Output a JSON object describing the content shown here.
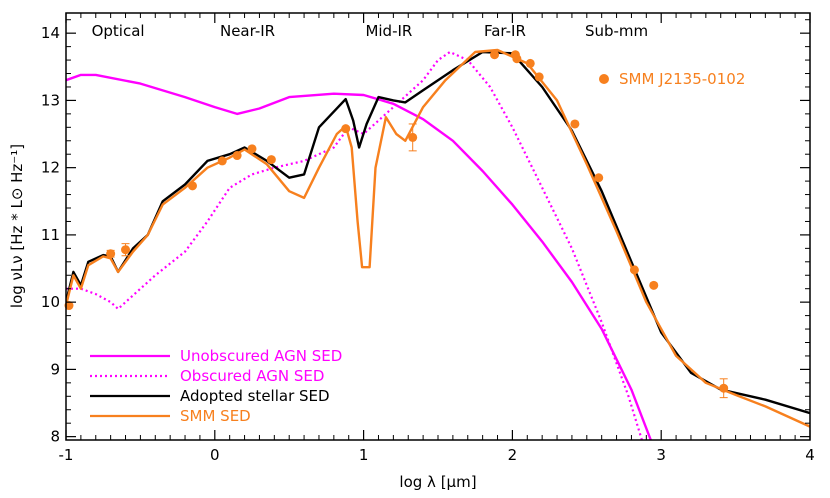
{
  "chart_data": {
    "type": "line",
    "xlabel": "log λ [μm]",
    "ylabel": "log νLν [Hz * L⊙ Hz⁻¹]",
    "xlim": [
      -1,
      4
    ],
    "ylim": [
      7.95,
      14.3
    ],
    "xticks": [
      -1,
      0,
      1,
      2,
      3,
      4
    ],
    "yticks": [
      8,
      9,
      10,
      11,
      12,
      13,
      14
    ],
    "regions": [
      {
        "label": "Optical",
        "x": -0.65
      },
      {
        "label": "Near-IR",
        "x": 0.22
      },
      {
        "label": "Mid-IR",
        "x": 1.17
      },
      {
        "label": "Far-IR",
        "x": 1.95
      },
      {
        "label": "Sub-mm",
        "x": 2.7
      }
    ],
    "series": [
      {
        "name": "Unobscured AGN SED",
        "color": "#ff00ff",
        "dash": "solid",
        "points": [
          [
            -1,
            13.3
          ],
          [
            -0.9,
            13.38
          ],
          [
            -0.8,
            13.38
          ],
          [
            -0.5,
            13.25
          ],
          [
            -0.2,
            13.05
          ],
          [
            0,
            12.9
          ],
          [
            0.15,
            12.8
          ],
          [
            0.3,
            12.88
          ],
          [
            0.5,
            13.05
          ],
          [
            0.8,
            13.1
          ],
          [
            1.0,
            13.08
          ],
          [
            1.2,
            12.95
          ],
          [
            1.4,
            12.72
          ],
          [
            1.6,
            12.4
          ],
          [
            1.8,
            11.95
          ],
          [
            2.0,
            11.45
          ],
          [
            2.2,
            10.9
          ],
          [
            2.4,
            10.3
          ],
          [
            2.6,
            9.6
          ],
          [
            2.8,
            8.7
          ],
          [
            2.93,
            7.95
          ]
        ]
      },
      {
        "name": "Obscured AGN SED",
        "color": "#ff00ff",
        "dash": "dotted",
        "points": [
          [
            -1,
            10.2
          ],
          [
            -0.9,
            10.2
          ],
          [
            -0.8,
            10.12
          ],
          [
            -0.7,
            10.0
          ],
          [
            -0.65,
            9.9
          ],
          [
            -0.55,
            10.1
          ],
          [
            -0.4,
            10.4
          ],
          [
            -0.2,
            10.75
          ],
          [
            -0.05,
            11.2
          ],
          [
            0.1,
            11.7
          ],
          [
            0.25,
            11.9
          ],
          [
            0.4,
            12.0
          ],
          [
            0.6,
            12.1
          ],
          [
            0.8,
            12.3
          ],
          [
            0.9,
            12.6
          ],
          [
            0.95,
            12.55
          ],
          [
            1.0,
            12.5
          ],
          [
            1.05,
            12.6
          ],
          [
            1.2,
            12.9
          ],
          [
            1.4,
            13.3
          ],
          [
            1.5,
            13.6
          ],
          [
            1.58,
            13.72
          ],
          [
            1.7,
            13.6
          ],
          [
            1.85,
            13.2
          ],
          [
            2.0,
            12.6
          ],
          [
            2.2,
            11.7
          ],
          [
            2.4,
            10.8
          ],
          [
            2.6,
            9.7
          ],
          [
            2.78,
            8.6
          ],
          [
            2.87,
            7.95
          ]
        ]
      },
      {
        "name": "Adopted stellar SED",
        "color": "#000000",
        "dash": "solid",
        "points": [
          [
            -1,
            10.0
          ],
          [
            -0.95,
            10.45
          ],
          [
            -0.9,
            10.25
          ],
          [
            -0.85,
            10.6
          ],
          [
            -0.75,
            10.7
          ],
          [
            -0.7,
            10.68
          ],
          [
            -0.65,
            10.45
          ],
          [
            -0.55,
            10.8
          ],
          [
            -0.45,
            11.0
          ],
          [
            -0.35,
            11.5
          ],
          [
            -0.2,
            11.75
          ],
          [
            -0.05,
            12.1
          ],
          [
            0.1,
            12.2
          ],
          [
            0.2,
            12.3
          ],
          [
            0.35,
            12.1
          ],
          [
            0.5,
            11.85
          ],
          [
            0.6,
            11.9
          ],
          [
            0.7,
            12.6
          ],
          [
            0.88,
            13.02
          ],
          [
            0.93,
            12.7
          ],
          [
            0.97,
            12.3
          ],
          [
            1.02,
            12.65
          ],
          [
            1.1,
            13.05
          ],
          [
            1.2,
            13.0
          ],
          [
            1.28,
            12.97
          ],
          [
            1.4,
            13.15
          ],
          [
            1.6,
            13.45
          ],
          [
            1.8,
            13.72
          ],
          [
            2.0,
            13.7
          ],
          [
            2.2,
            13.2
          ],
          [
            2.4,
            12.55
          ],
          [
            2.6,
            11.65
          ],
          [
            2.8,
            10.6
          ],
          [
            3.0,
            9.55
          ],
          [
            3.2,
            8.95
          ],
          [
            3.4,
            8.7
          ],
          [
            3.7,
            8.55
          ],
          [
            4.0,
            8.35
          ]
        ]
      },
      {
        "name": "SMM SED",
        "color": "#f7801e",
        "dash": "solid",
        "points": [
          [
            -1,
            9.95
          ],
          [
            -0.95,
            10.4
          ],
          [
            -0.9,
            10.2
          ],
          [
            -0.85,
            10.55
          ],
          [
            -0.75,
            10.68
          ],
          [
            -0.7,
            10.65
          ],
          [
            -0.65,
            10.45
          ],
          [
            -0.55,
            10.75
          ],
          [
            -0.45,
            11.0
          ],
          [
            -0.35,
            11.45
          ],
          [
            -0.2,
            11.7
          ],
          [
            -0.05,
            12.0
          ],
          [
            0.1,
            12.15
          ],
          [
            0.2,
            12.27
          ],
          [
            0.35,
            12.05
          ],
          [
            0.5,
            11.65
          ],
          [
            0.6,
            11.55
          ],
          [
            0.7,
            12.0
          ],
          [
            0.82,
            12.5
          ],
          [
            0.88,
            12.62
          ],
          [
            0.92,
            12.3
          ],
          [
            0.96,
            11.2
          ],
          [
            0.99,
            10.52
          ],
          [
            1.04,
            10.52
          ],
          [
            1.08,
            12.0
          ],
          [
            1.15,
            12.75
          ],
          [
            1.22,
            12.5
          ],
          [
            1.28,
            12.4
          ],
          [
            1.4,
            12.9
          ],
          [
            1.55,
            13.3
          ],
          [
            1.75,
            13.72
          ],
          [
            1.9,
            13.75
          ],
          [
            2.1,
            13.55
          ],
          [
            2.3,
            13.0
          ],
          [
            2.5,
            12.05
          ],
          [
            2.7,
            11.05
          ],
          [
            2.9,
            10.0
          ],
          [
            3.1,
            9.2
          ],
          [
            3.3,
            8.8
          ],
          [
            3.5,
            8.62
          ],
          [
            3.7,
            8.45
          ],
          [
            4.0,
            8.15
          ]
        ]
      }
    ],
    "observations": {
      "name": "SMM J2135-0102",
      "color": "#f7801e",
      "points": [
        [
          -0.98,
          9.95
        ],
        [
          -0.7,
          10.72
        ],
        [
          -0.6,
          10.78
        ],
        [
          -0.15,
          11.73
        ],
        [
          0.05,
          12.1
        ],
        [
          0.15,
          12.18
        ],
        [
          0.25,
          12.28
        ],
        [
          0.38,
          12.12
        ],
        [
          0.88,
          12.58
        ],
        [
          1.33,
          12.45
        ],
        [
          1.88,
          13.68
        ],
        [
          2.02,
          13.68
        ],
        [
          2.03,
          13.62
        ],
        [
          2.12,
          13.55
        ],
        [
          2.18,
          13.35
        ],
        [
          2.42,
          12.65
        ],
        [
          2.58,
          11.85
        ],
        [
          2.82,
          10.48
        ],
        [
          2.95,
          10.25
        ],
        [
          3.42,
          8.72
        ]
      ],
      "error_bars": [
        [
          -0.7,
          0.05
        ],
        [
          -0.6,
          0.09
        ],
        [
          1.33,
          0.2
        ],
        [
          3.42,
          0.14
        ]
      ]
    },
    "legend": {
      "placement": "bottom-left",
      "entries": [
        {
          "label": "Unobscured AGN SED",
          "color": "#ff00ff",
          "dash": "solid"
        },
        {
          "label": "Obscured AGN SED",
          "color": "#ff00ff",
          "dash": "dotted"
        },
        {
          "label": "Adopted stellar SED",
          "color": "#000000",
          "dash": "solid"
        },
        {
          "label": "SMM SED",
          "color": "#f7801e",
          "dash": "solid"
        }
      ]
    },
    "point_legend": {
      "placement": "top-right",
      "label": "SMM J2135-0102",
      "color": "#f7801e"
    }
  }
}
